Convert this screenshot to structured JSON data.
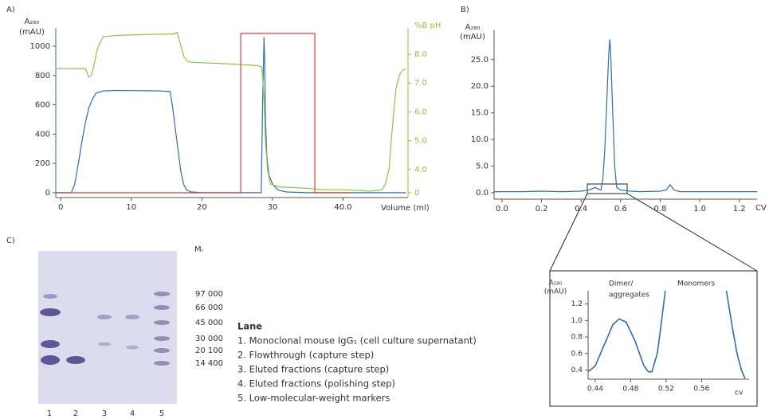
{
  "chart_data": [
    {
      "type": "line",
      "x_label": "Volume (ml)",
      "y_label": [
        "A₂₈₀",
        "(mAU)"
      ],
      "y2_label": "%B pH",
      "xlim": [
        -0.7,
        49.2
      ],
      "xticks": [
        0,
        10,
        20,
        30,
        {
          "value": 40,
          "label": "40.0"
        }
      ],
      "ylim": [
        -33,
        1125
      ],
      "yticks": [
        0,
        200,
        400,
        600,
        800,
        1000
      ],
      "y2lim": [
        3.03,
        8.91
      ],
      "y2ticks": [
        {
          "value": 4,
          "label": "4.0"
        },
        {
          "value": 5,
          "label": "5.0"
        },
        {
          "value": 6,
          "label": "6.0"
        },
        {
          "value": 7,
          "label": "7.0"
        },
        {
          "value": 8,
          "label": "8.0"
        }
      ],
      "y3lim": [
        -3,
        103.5
      ],
      "y3ticks": [
        0
      ],
      "series": [
        {
          "color": "#2f6db3",
          "x": [
            -0.7,
            1.5,
            2.0,
            2.5,
            3.0,
            3.5,
            4.0,
            4.5,
            5.0,
            6.0,
            8.0,
            10,
            12,
            14,
            15.5,
            15.8,
            16.2,
            16.6,
            17.0,
            17.4,
            17.8,
            18.5,
            20,
            25,
            28.4,
            28.6,
            28.8,
            28.9,
            29.0,
            29.2,
            29.5,
            30.0,
            30.5,
            31.0,
            32,
            35,
            40,
            45,
            48.9
          ],
          "values": [
            0,
            0,
            60,
            200,
            350,
            480,
            580,
            640,
            680,
            695,
            698,
            697,
            696,
            695,
            690,
            600,
            450,
            300,
            150,
            60,
            20,
            5,
            0,
            0,
            0,
            600,
            1060,
            900,
            500,
            250,
            120,
            60,
            30,
            15,
            5,
            0,
            0,
            0,
            0
          ]
        },
        {
          "color": "#8cc63f",
          "axis": "y2",
          "x": [
            -0.7,
            3.5,
            3.8,
            4.0,
            4.3,
            4.7,
            5.2,
            6.0,
            8,
            12,
            16,
            16.5,
            17.0,
            17.5,
            18.0,
            18.5,
            20,
            25,
            28.0,
            28.5,
            28.8,
            29.0,
            29.3,
            29.7,
            31,
            35,
            37,
            40,
            44,
            45.5,
            46,
            46.5,
            47,
            47.5,
            48,
            48.5,
            48.9
          ],
          "values": [
            7.5,
            7.5,
            7.3,
            7.2,
            7.25,
            7.6,
            8.2,
            8.6,
            8.65,
            8.68,
            8.7,
            8.75,
            8.3,
            7.9,
            7.75,
            7.72,
            7.7,
            7.65,
            7.6,
            7.55,
            6.5,
            5.0,
            4.0,
            3.5,
            3.4,
            3.35,
            3.3,
            3.3,
            3.25,
            3.3,
            3.5,
            4.0,
            5.5,
            6.8,
            7.3,
            7.45,
            7.5
          ]
        },
        {
          "color": "#e03c3c",
          "axis": "y3",
          "x": [
            -0.7,
            25.5,
            25.5,
            36,
            36,
            41
          ],
          "values": [
            0,
            0,
            100,
            100,
            0,
            0
          ]
        }
      ]
    },
    {
      "type": "line",
      "x_label": "CV",
      "y_label": [
        "A₂₈₀",
        "(mAU)"
      ],
      "xlim": [
        -0.04,
        1.29
      ],
      "xticks": [
        {
          "value": 0,
          "label": "0.0"
        },
        0.2,
        0.4,
        0.6,
        0.8,
        {
          "value": 1,
          "label": "1.0"
        },
        1.2
      ],
      "ylim": [
        -1.2,
        30.5
      ],
      "yticks": [
        {
          "value": 0,
          "label": "0.0"
        },
        {
          "value": 5,
          "label": "5.0"
        },
        {
          "value": 10,
          "label": "10.0"
        },
        {
          "value": 15,
          "label": "15.0"
        },
        {
          "value": 20,
          "label": "20.0"
        },
        {
          "value": 25,
          "label": "25.0"
        }
      ],
      "series": [
        {
          "color": "#2f6db3",
          "x": [
            -0.04,
            0.1,
            0.2,
            0.3,
            0.4,
            0.44,
            0.47,
            0.5,
            0.51,
            0.52,
            0.53,
            0.54,
            0.545,
            0.55,
            0.56,
            0.57,
            0.58,
            0.6,
            0.65,
            0.7,
            0.8,
            0.83,
            0.85,
            0.87,
            0.9,
            1.0,
            1.1,
            1.29
          ],
          "values": [
            0.2,
            0.2,
            0.3,
            0.2,
            0.3,
            0.5,
            1.0,
            0.5,
            2.5,
            8,
            17,
            26,
            28.8,
            26,
            15,
            5,
            1,
            0.5,
            0.3,
            0.2,
            0.3,
            0.5,
            1.5,
            0.5,
            0.2,
            0.2,
            0.2,
            0.2
          ]
        }
      ]
    },
    {
      "type": "line",
      "x_label": "cv",
      "y_label": [
        "A₂₈₀",
        "(mAU)"
      ],
      "annotations": [
        [
          "Dimer/",
          "aggregates"
        ],
        [
          "Monomers"
        ]
      ],
      "xlim": [
        0.432,
        0.6136
      ],
      "xticks": [
        0.44,
        0.48,
        0.52,
        0.56
      ],
      "ylim": [
        0.29,
        1.36
      ],
      "yticks": [
        0.4,
        0.6,
        0.8,
        {
          "value": 1,
          "label": "1.0"
        },
        1.2
      ],
      "series": [
        {
          "color": "#2f6db3",
          "x": [
            0.432,
            0.44,
            0.45,
            0.46,
            0.467,
            0.475,
            0.485,
            0.495,
            0.5,
            0.504,
            0.51,
            0.515,
            0.519,
            null,
            0.588,
            0.595,
            0.6,
            0.605,
            0.609
          ],
          "values": [
            0.38,
            0.45,
            0.7,
            0.95,
            1.02,
            0.98,
            0.75,
            0.45,
            0.38,
            0.38,
            0.6,
            1.0,
            1.36,
            null,
            1.36,
            0.9,
            0.6,
            0.4,
            0.3
          ]
        }
      ]
    }
  ],
  "panel_labels": [
    "A)",
    "B)",
    "C)"
  ],
  "gel": {
    "mr_title": "Mᵣ",
    "mr_labels": [
      "97 000",
      "66 000",
      "45 000",
      "30 000",
      "20 100",
      "14 400"
    ],
    "lane_numbers": [
      "1",
      "2",
      "3",
      "4",
      "5"
    ]
  },
  "lane_legend": {
    "title": "Lane",
    "items": [
      "1. Monoclonal mouse IgG₁ (cell culture supernatant)",
      "2. Flowthrough (capture step)",
      "3. Eluted fractions (capture step)",
      "4. Eluted fractions (polishing step)",
      "5. Low-molecular-weight markers"
    ]
  }
}
